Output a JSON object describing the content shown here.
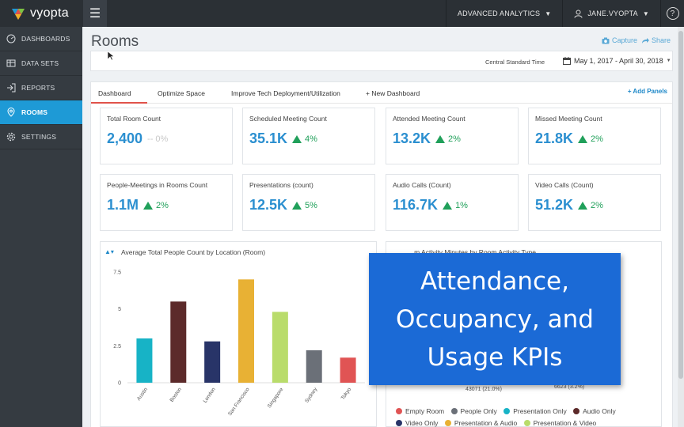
{
  "brand": {
    "name": "vyopta"
  },
  "topbar": {
    "menu_icon": "hamburger-icon",
    "analytics_label": "ADVANCED ANALYTICS",
    "user_label": "JANE.VYOPTA",
    "help_label": "?"
  },
  "sidebar": {
    "items": [
      {
        "label": "DASHBOARDS",
        "icon": "gauge-icon",
        "active": false
      },
      {
        "label": "DATA SETS",
        "icon": "dataset-icon",
        "active": false
      },
      {
        "label": "REPORTS",
        "icon": "report-icon",
        "active": false
      },
      {
        "label": "ROOMS",
        "icon": "location-pin-icon",
        "active": true
      },
      {
        "label": "SETTINGS",
        "icon": "gear-icon",
        "active": false
      }
    ]
  },
  "page": {
    "title": "Rooms",
    "capture_label": "Capture",
    "share_label": "Share",
    "timezone": "Central Standard Time",
    "date_range": "May 1, 2017 - April 30, 2018"
  },
  "tabs": {
    "items": [
      "Dashboard",
      "Optimize Space",
      "Improve Tech Deployment/Utilization",
      "+ New Dashboard"
    ],
    "add_panels": "+ Add Panels"
  },
  "kpis": [
    {
      "title": "Total Room Count",
      "value": "2,400",
      "change": "-- 0%",
      "trend": "flat"
    },
    {
      "title": "Scheduled Meeting Count",
      "value": "35.1K",
      "change": "4%",
      "trend": "up"
    },
    {
      "title": "Attended Meeting Count",
      "value": "13.2K",
      "change": "2%",
      "trend": "up"
    },
    {
      "title": "Missed Meeting Count",
      "value": "21.8K",
      "change": "2%",
      "trend": "up"
    },
    {
      "title": "People-Meetings in Rooms Count",
      "value": "1.1M",
      "change": "2%",
      "trend": "up"
    },
    {
      "title": "Presentations (count)",
      "value": "12.5K",
      "change": "5%",
      "trend": "up"
    },
    {
      "title": "Audio Calls (Count)",
      "value": "116.7K",
      "change": "1%",
      "trend": "up"
    },
    {
      "title": "Video Calls (Count)",
      "value": "51.2K",
      "change": "2%",
      "trend": "up"
    }
  ],
  "chart2": {
    "title_partial": "...m Activity Minutes by Room Activity Type",
    "label_a": "43071 (21.0%)",
    "label_b": "6623 (3.2%)",
    "legend": [
      {
        "name": "Empty Room",
        "color": "#e05454"
      },
      {
        "name": "People Only",
        "color": "#6b7078"
      },
      {
        "name": "Presentation Only",
        "color": "#17b3c6"
      },
      {
        "name": "Audio Only",
        "color": "#5c2a2a"
      },
      {
        "name": "Video Only",
        "color": "#283468"
      },
      {
        "name": "Presentation & Audio",
        "color": "#e8b134"
      },
      {
        "name": "Presentation & Video",
        "color": "#b9dc6b"
      }
    ]
  },
  "callout": {
    "lines": [
      "Attendance,",
      "Occupancy, and",
      "Usage KPIs"
    ]
  },
  "chart_data": {
    "type": "bar",
    "title": "Average Total People Count by Location (Room)",
    "categories": [
      "Austin",
      "Boston",
      "London",
      "San Francisco",
      "Singapore",
      "Sydney",
      "Tokyo"
    ],
    "values": [
      3.0,
      5.5,
      2.8,
      7.0,
      4.8,
      2.2,
      1.7
    ],
    "colors": [
      "#17b3c6",
      "#5c2a2a",
      "#283468",
      "#e8b134",
      "#b9dc6b",
      "#6b7078",
      "#e05454"
    ],
    "yticks": [
      "0",
      "2.5",
      "5",
      "7.5"
    ],
    "ylim": [
      0,
      7.5
    ],
    "grid": false,
    "legend": false
  }
}
